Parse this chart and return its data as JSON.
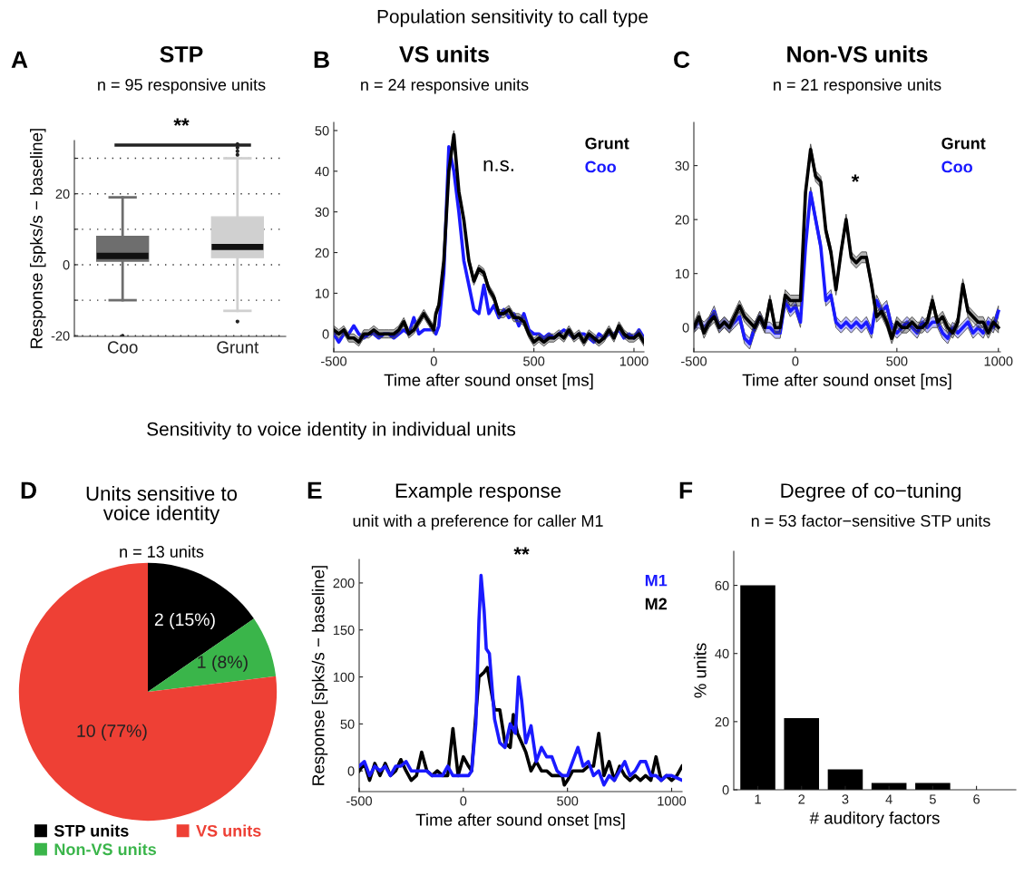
{
  "chart_data": [
    {
      "type": "box",
      "title": "STP",
      "subtitle": "n = 95 responsive units",
      "ylabel": "Response [spks/s − baseline]",
      "categories": [
        "Coo",
        "Grunt"
      ],
      "colors": [
        "#6e6e6e",
        "#d0d0d0"
      ],
      "boxes": [
        {
          "low": -10,
          "q1": 1,
          "median": 2.5,
          "q3": 8,
          "high": 19,
          "outliers": [
            -20
          ]
        },
        {
          "low": -13,
          "q1": 2,
          "median": 5,
          "q3": 13.5,
          "high": 30,
          "outliers": [
            -16,
            31,
            32,
            33,
            34
          ]
        }
      ],
      "ylim": [
        -20.2,
        35
      ],
      "yticks": [
        -20,
        {
          "value": -10,
          "label": null
        },
        0,
        {
          "value": 10,
          "label": null
        },
        20,
        {
          "value": 30,
          "label": null
        }
      ],
      "grid": "y",
      "annotations": [
        "A",
        "Population sensitivity to call type",
        "**"
      ]
    },
    {
      "type": "line",
      "title": "VS units",
      "subtitle": "n = 24 responsive units",
      "xlabel": "Time after sound onset [ms]",
      "x": [
        -500,
        -475,
        -450,
        -425,
        -400,
        -375,
        -350,
        -325,
        -300,
        -275,
        -250,
        -225,
        -200,
        -175,
        -150,
        -125,
        -100,
        -75,
        -50,
        -25,
        0,
        10,
        25,
        50,
        75,
        100,
        125,
        150,
        175,
        200,
        225,
        250,
        275,
        300,
        325,
        350,
        375,
        400,
        425,
        450,
        475,
        500,
        525,
        550,
        575,
        600,
        625,
        650,
        675,
        700,
        725,
        750,
        775,
        800,
        825,
        850,
        875,
        900,
        925,
        950,
        975,
        1000,
        1025,
        1050
      ],
      "series": [
        {
          "name": "Grunt",
          "color": "#000000",
          "values": [
            1,
            0,
            1,
            -1,
            -1,
            -2,
            0,
            0,
            1,
            0,
            0,
            0,
            0,
            1,
            3,
            0,
            1,
            3,
            5,
            3,
            1,
            5,
            7,
            18,
            40,
            49,
            35,
            28,
            18,
            13,
            16,
            15,
            11,
            9,
            5,
            5,
            6,
            4,
            4,
            3,
            0,
            -2,
            -1,
            -2,
            -1,
            -1,
            0,
            -1,
            1,
            -1,
            0,
            -2,
            0,
            -1,
            -2,
            -1,
            1,
            -1,
            2,
            0,
            -1,
            -1,
            0,
            -2
          ],
          "lower": [
            0,
            -1,
            0,
            -2,
            -2,
            -3,
            -1,
            -1,
            0,
            -1,
            -1,
            -1,
            -1,
            0,
            2,
            -1,
            0,
            2,
            4,
            2,
            0,
            4,
            6,
            17,
            39,
            48,
            34,
            27,
            17,
            12,
            15,
            14,
            10,
            8,
            4,
            4,
            5,
            3,
            3,
            2,
            -1,
            -3,
            -2,
            -3,
            -2,
            -2,
            -1,
            -2,
            0,
            -2,
            -1,
            -3,
            -1,
            -2,
            -3,
            -2,
            0,
            -2,
            1,
            -1,
            -2,
            -2,
            -1,
            -3
          ],
          "upper": [
            2,
            1,
            2,
            0,
            0,
            -1,
            1,
            1,
            2,
            1,
            1,
            1,
            1,
            2,
            4,
            1,
            2,
            4,
            6,
            4,
            2,
            6,
            8,
            19,
            41,
            50,
            36,
            29,
            19,
            14,
            17,
            16,
            12,
            10,
            6,
            6,
            7,
            5,
            5,
            4,
            1,
            -1,
            0,
            -1,
            0,
            0,
            1,
            0,
            2,
            0,
            1,
            -1,
            1,
            0,
            -1,
            0,
            2,
            0,
            3,
            1,
            0,
            0,
            1,
            -1
          ]
        },
        {
          "name": "Coo",
          "color": "#1a1aff",
          "values": [
            0,
            -2,
            0,
            0,
            2,
            0,
            -1,
            0,
            0,
            -1,
            0,
            0,
            -1,
            0,
            1,
            0,
            4,
            0,
            1,
            1,
            1,
            0,
            2,
            15,
            46,
            40,
            30,
            18,
            12,
            6,
            5,
            12,
            5,
            7,
            4,
            6,
            4,
            5,
            2,
            5,
            1,
            0,
            0,
            -1,
            0,
            -1,
            0,
            1,
            0,
            -1,
            0,
            0,
            -1,
            -2,
            0,
            -1,
            0,
            0,
            1,
            -1,
            0,
            -1,
            1,
            -1
          ]
        }
      ],
      "xlim": [
        -500,
        1050
      ],
      "xticks": [
        -500,
        0,
        500,
        1000
      ],
      "ylim": [
        -4.4,
        52
      ],
      "yticks": [
        0,
        10,
        20,
        30,
        40,
        50
      ],
      "legend": "top right",
      "annotations": [
        "B",
        "n.s."
      ]
    },
    {
      "type": "line",
      "title": "Non-VS units",
      "subtitle": "n = 21 responsive units",
      "xlabel": "Time after sound onset [ms]",
      "x": [
        -500,
        -475,
        -450,
        -425,
        -400,
        -375,
        -350,
        -325,
        -300,
        -275,
        -250,
        -225,
        -200,
        -175,
        -150,
        -125,
        -100,
        -75,
        -50,
        -25,
        0,
        25,
        50,
        75,
        100,
        125,
        150,
        175,
        200,
        225,
        250,
        275,
        300,
        325,
        350,
        375,
        400,
        425,
        450,
        475,
        500,
        525,
        550,
        575,
        600,
        625,
        650,
        675,
        700,
        725,
        750,
        775,
        800,
        825,
        850,
        875,
        900,
        925,
        950,
        975,
        1000
      ],
      "series": [
        {
          "name": "Grunt",
          "color": "#000000",
          "values": [
            0,
            2,
            -1,
            1,
            2,
            0,
            1,
            0,
            2,
            4,
            2,
            1,
            0,
            2,
            0,
            5,
            0,
            0,
            6,
            5,
            5,
            5,
            25,
            33,
            28,
            27,
            18,
            14,
            7,
            14,
            20,
            13,
            12,
            13,
            13,
            8,
            2,
            3,
            1,
            -2,
            1,
            0,
            0,
            1,
            0,
            0,
            1,
            5,
            1,
            2,
            0,
            -1,
            1,
            8,
            3,
            2,
            1,
            1,
            -1,
            1,
            0
          ],
          "lower": [
            -1,
            1,
            -2,
            0,
            1,
            -1,
            0,
            -1,
            1,
            3,
            1,
            0,
            -1,
            1,
            -1,
            4,
            -1,
            -1,
            5,
            4,
            4,
            4,
            24,
            32,
            27,
            26,
            17,
            13,
            6,
            13,
            19,
            12,
            11,
            12,
            12,
            7,
            1,
            2,
            0,
            -3,
            0,
            -1,
            -1,
            0,
            -1,
            -1,
            0,
            4,
            0,
            1,
            -1,
            -2,
            0,
            7,
            2,
            1,
            0,
            0,
            -2,
            0,
            -1
          ],
          "upper": [
            1,
            3,
            0,
            2,
            3,
            1,
            2,
            1,
            3,
            5,
            3,
            2,
            1,
            3,
            1,
            6,
            1,
            1,
            7,
            6,
            6,
            6,
            26,
            34,
            29,
            28,
            19,
            15,
            8,
            15,
            21,
            14,
            13,
            14,
            14,
            9,
            3,
            4,
            2,
            -1,
            2,
            1,
            1,
            2,
            1,
            1,
            2,
            6,
            2,
            3,
            1,
            0,
            2,
            9,
            4,
            3,
            2,
            2,
            0,
            2,
            1
          ]
        },
        {
          "name": "Coo",
          "color": "#1a1aff",
          "values": [
            0,
            1,
            0,
            1,
            3,
            0,
            1,
            0,
            1,
            2,
            -2,
            -3,
            0,
            2,
            0,
            0,
            -1,
            -1,
            5,
            3,
            4,
            1,
            15,
            25,
            20,
            15,
            5,
            6,
            1,
            0,
            1,
            0,
            1,
            0,
            1,
            -1,
            5,
            3,
            4,
            0,
            -1,
            0,
            1,
            0,
            -1,
            1,
            0,
            1,
            1,
            -1,
            -2,
            0,
            -1,
            0,
            1,
            -1,
            0,
            -1,
            1,
            0,
            3
          ],
          "lower": [
            -1,
            0,
            -1,
            0,
            2,
            -1,
            0,
            -1,
            0,
            1,
            -3,
            -4,
            -1,
            1,
            -1,
            -1,
            -2,
            -2,
            4,
            2,
            3,
            0,
            14,
            24,
            19,
            14,
            4,
            5,
            0,
            -1,
            0,
            -1,
            0,
            -1,
            0,
            -2,
            4,
            2,
            3,
            -1,
            -2,
            -1,
            0,
            -1,
            -2,
            0,
            -1,
            0,
            0,
            -2,
            -3,
            -1,
            -2,
            -1,
            0,
            -2,
            -1,
            -2,
            0,
            -1,
            2
          ],
          "upper": [
            1,
            2,
            1,
            2,
            4,
            1,
            2,
            1,
            2,
            3,
            -1,
            -2,
            1,
            3,
            1,
            1,
            0,
            0,
            6,
            4,
            5,
            2,
            16,
            26,
            21,
            16,
            6,
            7,
            2,
            1,
            2,
            1,
            2,
            1,
            2,
            0,
            6,
            4,
            5,
            1,
            0,
            1,
            2,
            1,
            0,
            2,
            1,
            2,
            2,
            0,
            -1,
            1,
            0,
            1,
            2,
            0,
            1,
            0,
            2,
            1,
            4
          ]
        }
      ],
      "xlim": [
        -500,
        1010
      ],
      "xticks": [
        -500,
        0,
        500,
        1000
      ],
      "ylim": [
        -4.5,
        38
      ],
      "yticks": [
        0,
        10,
        20,
        30
      ],
      "legend": "top right",
      "annotations": [
        "C",
        "*"
      ]
    },
    {
      "type": "pie",
      "title": "Units sensitive to\nvoice identity",
      "subtitle": "n = 13 units",
      "categories": [
        "STP units",
        "Non-VS units",
        "VS units"
      ],
      "values": [
        2,
        1,
        10
      ],
      "colors": [
        "#000000",
        "#3ab54a",
        "#ee4035"
      ],
      "value_labels": [
        "2 (15%)",
        "1 (8%)",
        "10 (77%)"
      ],
      "legend": "bottom",
      "annotations": [
        "D",
        "Sensitivity to voice identity in individual units"
      ]
    },
    {
      "type": "line",
      "title": "Example response",
      "subtitle": "unit with a preference for caller M1",
      "xlabel": "Time after sound onset [ms]",
      "ylabel": "Response [spks/s − baseline]",
      "series": [
        {
          "name": "M1",
          "color": "#1a1aff",
          "x": [
            -500,
            -475,
            -450,
            -425,
            -400,
            -375,
            -350,
            -325,
            -300,
            -275,
            -250,
            -225,
            -200,
            -175,
            -150,
            -125,
            -100,
            -75,
            -50,
            -25,
            0,
            25,
            40,
            60,
            75,
            85,
            100,
            110,
            125,
            150,
            175,
            200,
            225,
            250,
            265,
            280,
            300,
            325,
            350,
            375,
            400,
            425,
            450,
            475,
            500,
            525,
            550,
            575,
            600,
            625,
            650,
            675,
            700,
            725,
            750,
            775,
            800,
            825,
            850,
            875,
            900,
            925,
            950,
            975,
            1000,
            1050
          ],
          "values": [
            5,
            10,
            -5,
            5,
            0,
            5,
            -5,
            5,
            5,
            10,
            0,
            0,
            0,
            0,
            -5,
            -5,
            -5,
            5,
            -5,
            -5,
            -5,
            -5,
            0,
            50,
            160,
            208,
            170,
            130,
            125,
            55,
            30,
            25,
            50,
            40,
            100,
            75,
            30,
            48,
            10,
            25,
            15,
            15,
            0,
            -5,
            -5,
            10,
            25,
            5,
            10,
            -5,
            0,
            -15,
            -5,
            -10,
            0,
            10,
            -5,
            0,
            10,
            10,
            -5,
            -5,
            -10,
            -5,
            -5,
            -10
          ]
        },
        {
          "name": "M2",
          "color": "#000000",
          "x": [
            -500,
            -475,
            -450,
            -425,
            -400,
            -375,
            -350,
            -325,
            -300,
            -275,
            -250,
            -225,
            -200,
            -175,
            -150,
            -125,
            -100,
            -75,
            -50,
            -25,
            0,
            25,
            40,
            60,
            75,
            100,
            115,
            130,
            150,
            175,
            200,
            225,
            240,
            260,
            280,
            300,
            325,
            350,
            375,
            400,
            425,
            450,
            475,
            485,
            500,
            525,
            550,
            575,
            600,
            625,
            650,
            675,
            700,
            725,
            750,
            775,
            800,
            825,
            850,
            875,
            900,
            925,
            950,
            975,
            1000,
            1025,
            1050
          ],
          "values": [
            0,
            8,
            -10,
            8,
            -5,
            8,
            -5,
            0,
            12,
            0,
            -10,
            -5,
            20,
            0,
            -5,
            0,
            -5,
            -5,
            45,
            -5,
            15,
            5,
            0,
            60,
            100,
            105,
            110,
            90,
            65,
            65,
            30,
            25,
            60,
            40,
            30,
            20,
            0,
            10,
            0,
            0,
            -5,
            -5,
            -5,
            -15,
            -10,
            0,
            0,
            0,
            5,
            5,
            40,
            -5,
            10,
            -10,
            5,
            -5,
            -10,
            -5,
            -10,
            -5,
            -10,
            15,
            -10,
            -5,
            -10,
            -5,
            5
          ]
        }
      ],
      "xlim": [
        -500,
        1050
      ],
      "xticks": [
        -500,
        0,
        500,
        1000
      ],
      "ylim": [
        -22,
        225
      ],
      "yticks": [
        0,
        50,
        100,
        150,
        200
      ],
      "legend": "top right",
      "annotations": [
        "E",
        "**"
      ]
    },
    {
      "type": "bar",
      "title": "Degree of co−tuning",
      "subtitle": "n = 53 factor−sensitive STP units",
      "xlabel": "# auditory factors",
      "ylabel": "% units",
      "categories": [
        "1",
        "2",
        "3",
        "4",
        "5",
        "6"
      ],
      "values": [
        60,
        21,
        6,
        2,
        2,
        0
      ],
      "color": "#000000",
      "ylim": [
        0,
        70
      ],
      "yticks": [
        0,
        20,
        40,
        60
      ],
      "annotations": [
        "F"
      ]
    }
  ]
}
